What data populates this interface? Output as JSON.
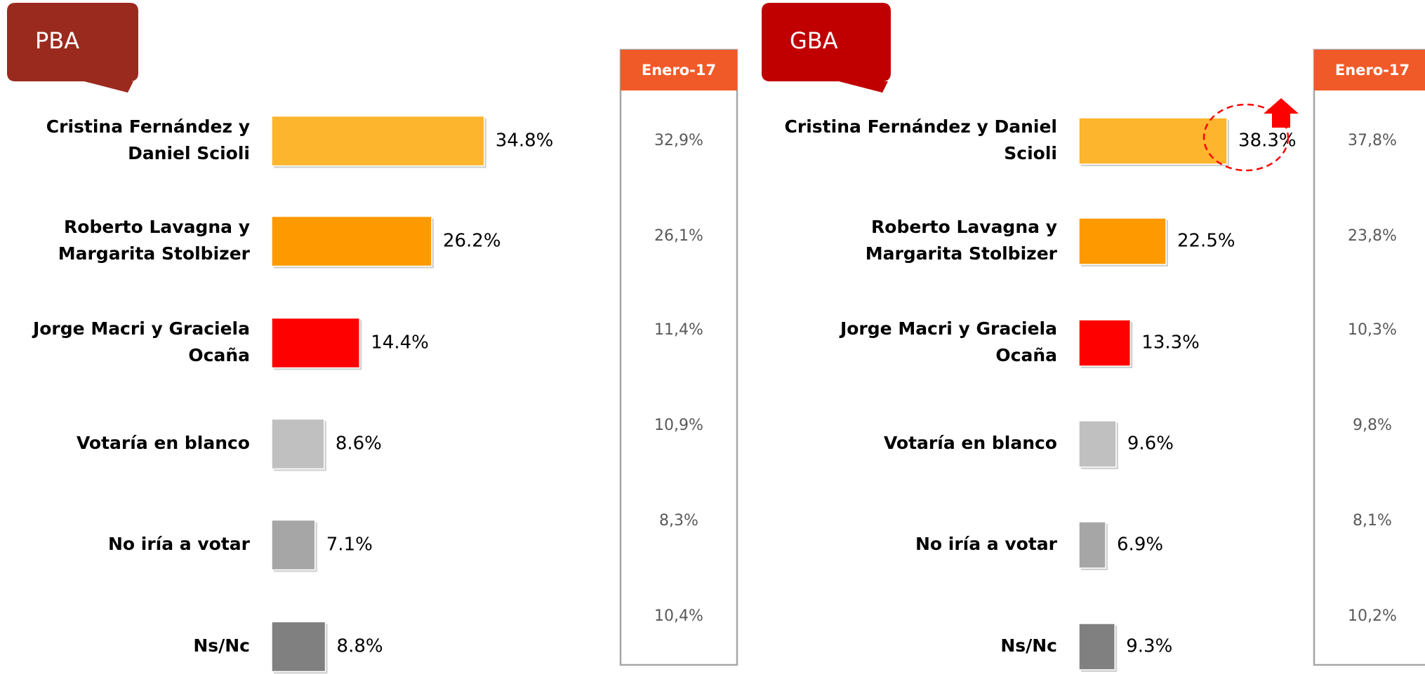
{
  "chart_data": [
    {
      "type": "bar",
      "title": "PBA",
      "categories": [
        [
          "Cristina Fernández y",
          "Daniel Scioli"
        ],
        [
          "Roberto Lavagna y",
          "Margarita Stolbizer"
        ],
        [
          "Jorge Macri y Graciela",
          "Ocaña"
        ],
        [
          "Votaría en blanco"
        ],
        [
          "No iría a votar"
        ],
        [
          "Ns/Nc"
        ]
      ],
      "values": [
        34.8,
        26.2,
        14.4,
        8.6,
        7.1,
        8.8
      ],
      "value_labels": [
        "34.8%",
        "26.2%",
        "14.4%",
        "8.6%",
        "7.1%",
        "8.8%"
      ],
      "colors": [
        "#FDB52D",
        "#FF9900",
        "#FF0000",
        "#C0C0C0",
        "#A6A6A6",
        "#808080"
      ],
      "tag_color": "#9B2A1E",
      "comparison": {
        "header": "Enero-17",
        "labels": [
          "32,9%",
          "26,1%",
          "11,4%",
          "10,9%",
          "8,3%",
          "10,4%"
        ]
      }
    },
    {
      "type": "bar",
      "title": "GBA",
      "categories": [
        [
          "Cristina Fernández y Daniel",
          "Scioli"
        ],
        [
          "Roberto Lavagna y",
          "Margarita Stolbizer"
        ],
        [
          "Jorge Macri y Graciela",
          "Ocaña"
        ],
        [
          "Votaría en blanco"
        ],
        [
          "No iría a votar"
        ],
        [
          "Ns/Nc"
        ]
      ],
      "values": [
        38.3,
        22.5,
        13.3,
        9.6,
        6.9,
        9.3
      ],
      "value_labels": [
        "38.3%",
        "22.5%",
        "13.3%",
        "9.6%",
        "6.9%",
        "9.3%"
      ],
      "colors": [
        "#FDB52D",
        "#FF9900",
        "#FF0000",
        "#C0C0C0",
        "#A6A6A6",
        "#808080"
      ],
      "tag_color": "#C00000",
      "comparison": {
        "header": "Enero-17",
        "labels": [
          "37,8%",
          "23,8%",
          "10,3%",
          "9,8%",
          "8,1%",
          "10,2%"
        ]
      }
    }
  ]
}
